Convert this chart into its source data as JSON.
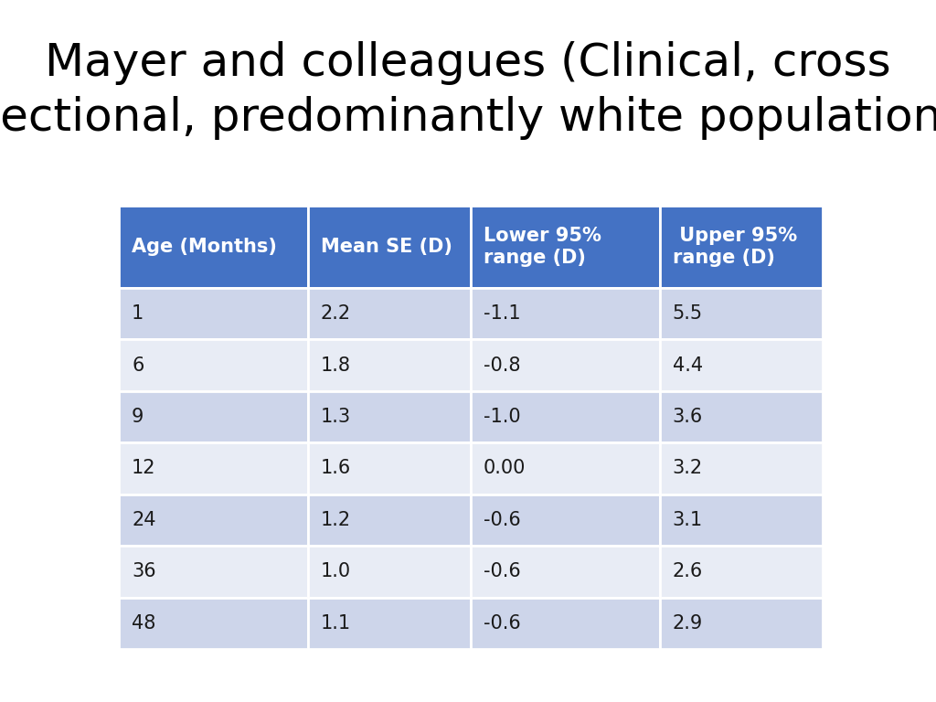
{
  "title_line1": "Mayer and colleagues (Clinical, cross",
  "title_line2": "sectional, predominantly white population)",
  "title_fontsize": 36,
  "title_color": "#000000",
  "background_color": "#ffffff",
  "header": [
    "Age (Months)",
    "Mean SE (D)",
    "Lower 95%\nrange (D)",
    " Upper 95%\nrange (D)"
  ],
  "rows": [
    [
      "1",
      "2.2",
      "-1.1",
      "5.5"
    ],
    [
      "6",
      "1.8",
      "-0.8",
      "4.4"
    ],
    [
      "9",
      "1.3",
      "-1.0",
      "3.6"
    ],
    [
      "12",
      "1.6",
      "0.00",
      "3.2"
    ],
    [
      "24",
      "1.2",
      "-0.6",
      "3.1"
    ],
    [
      "36",
      "1.0",
      "-0.6",
      "2.6"
    ],
    [
      "48",
      "1.1",
      "-0.6",
      "2.9"
    ]
  ],
  "header_bg_color": "#4472C4",
  "header_text_color": "#ffffff",
  "row_odd_color": "#CDD5EA",
  "row_even_color": "#E8ECF5",
  "cell_text_color": "#1a1a1a",
  "header_fontsize": 15,
  "cell_fontsize": 15
}
